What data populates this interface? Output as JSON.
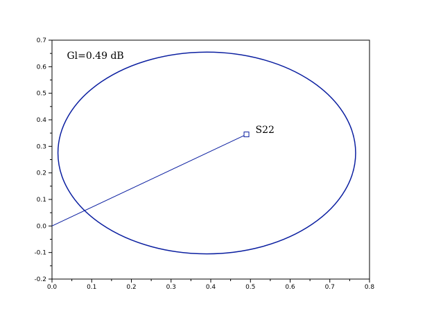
{
  "chart_data": {
    "type": "scatter",
    "xlim": [
      0.0,
      0.8
    ],
    "ylim": [
      -0.2,
      0.7
    ],
    "x_ticks": [
      "0.0",
      "0.1",
      "0.2",
      "0.3",
      "0.4",
      "0.5",
      "0.6",
      "0.7",
      "0.8"
    ],
    "y_ticks": [
      "-0.2",
      "-0.1",
      "0.0",
      "0.1",
      "0.2",
      "0.3",
      "0.4",
      "0.5",
      "0.6",
      "0.7"
    ],
    "grid": false,
    "circle": {
      "center": [
        0.39,
        0.275
      ],
      "radius_x": 0.375,
      "radius_y": 0.38,
      "color": "#0a1ea0"
    },
    "line": {
      "from": [
        0.0,
        0.0
      ],
      "to": [
        0.49,
        0.345
      ],
      "color": "#0a1ea0"
    },
    "point": {
      "x": 0.49,
      "y": 0.345,
      "label": "S22"
    },
    "annotation": {
      "text": "Gl=0.49 dB",
      "x": 0.02,
      "y": 0.645
    }
  }
}
